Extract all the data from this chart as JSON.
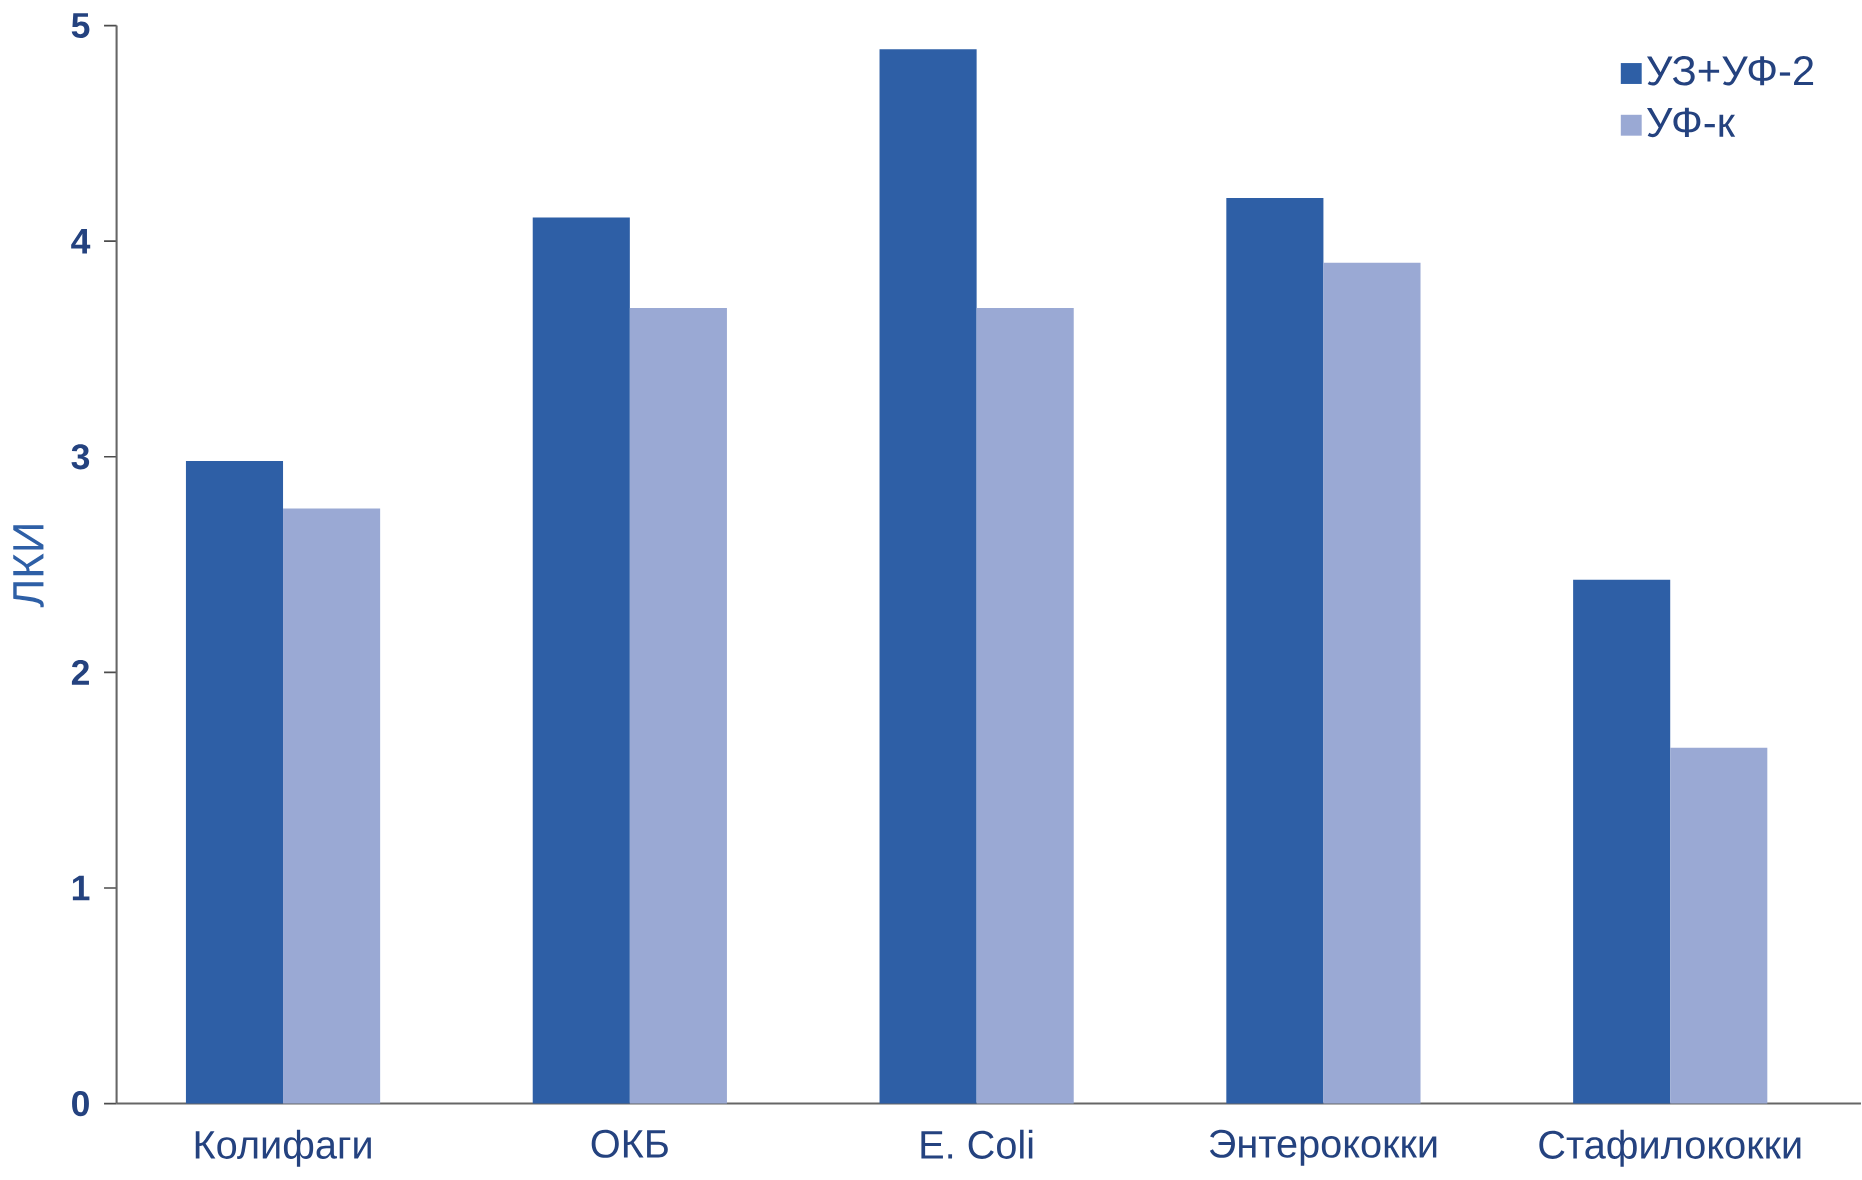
{
  "chart_data": {
    "type": "bar",
    "ylabel": "ЛКИ",
    "categories": [
      "Колифаги",
      "ОКБ",
      "E. Coli",
      "Энтерококки",
      "Стафилококки"
    ],
    "series": [
      {
        "name": "УЗ+УФ-2",
        "color": "#2e5fa6",
        "values": [
          2.98,
          4.11,
          4.89,
          4.2,
          2.43
        ]
      },
      {
        "name": "УФ-к",
        "color": "#9aa9d4",
        "values": [
          2.76,
          3.69,
          3.69,
          3.9,
          1.65
        ]
      }
    ],
    "ylim": [
      0,
      5
    ],
    "yticks": [
      0,
      1,
      2,
      3,
      4,
      5
    ],
    "legend": "top right"
  }
}
